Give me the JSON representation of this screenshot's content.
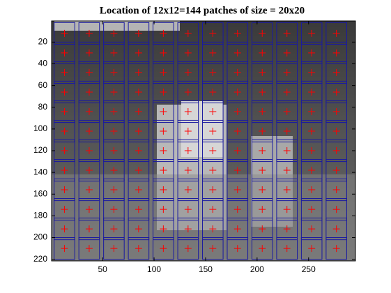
{
  "chart_data": {
    "type": "patch-grid",
    "title": "Location of 12x12=144 patches of size = 20x20",
    "x_centers": [
      13,
      37,
      61,
      85,
      109,
      133,
      157,
      181,
      205,
      229,
      253,
      277
    ],
    "y_centers": [
      12,
      30,
      48,
      66,
      84,
      102,
      120,
      138,
      156,
      174,
      192,
      210
    ],
    "patch_size": 20,
    "xlim": [
      0.5,
      295.5
    ],
    "ylim": [
      0.5,
      221.5
    ],
    "y_reversed": true,
    "xticks": [
      50,
      100,
      150,
      200,
      250
    ],
    "yticks": [
      20,
      40,
      60,
      80,
      100,
      120,
      140,
      160,
      180,
      200,
      220
    ],
    "box_color": "#1a1aa0",
    "marker_color": "#ff0000"
  }
}
